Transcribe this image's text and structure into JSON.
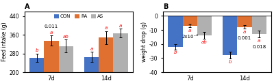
{
  "chart_data": [
    {
      "type": "bar",
      "title": "A",
      "y_label": "Feed intake (g)",
      "categories": [
        "7d",
        "14d"
      ],
      "series": [
        {
          "name": "CON",
          "color": "#4472C4",
          "values": [
            262,
            265
          ],
          "errors": [
            18,
            22
          ],
          "significance": [
            "b",
            "a"
          ]
        },
        {
          "name": "RA",
          "color": "#E07030",
          "values": [
            335,
            348
          ],
          "errors": [
            22,
            28
          ],
          "significance": [
            "a",
            "a"
          ]
        },
        {
          "name": "AS",
          "color": "#B0B0B0",
          "values": [
            312,
            368
          ],
          "errors": [
            28,
            18
          ],
          "significance": [
            "ab",
            "a"
          ]
        }
      ],
      "significance_color": "red",
      "annotations": [
        {
          "text": "0.011",
          "category": "7d",
          "series": "RA"
        }
      ],
      "ylim": [
        200,
        460
      ],
      "yticks": [
        200,
        280,
        360,
        440
      ],
      "legend": "upper center"
    },
    {
      "type": "bar",
      "title": "B",
      "y_label": "weight drop (g)",
      "categories": [
        "7d",
        "14d"
      ],
      "series": [
        {
          "name": "CON",
          "color": "#4472C4",
          "values": [
            -22,
            -28
          ],
          "errors": [
            2.0,
            2.5
          ],
          "significance": [
            "b",
            "b"
          ]
        },
        {
          "name": "RA",
          "color": "#E07030",
          "values": [
            -7,
            -8
          ],
          "errors": [
            1.2,
            1.2
          ],
          "significance": [
            "a",
            "a"
          ]
        },
        {
          "name": "AS",
          "color": "#B0B0B0",
          "values": [
            -14,
            -13
          ],
          "errors": [
            2.5,
            2.5
          ],
          "significance": [
            "ab",
            "a"
          ]
        }
      ],
      "significance_color": "red",
      "annotations": [
        {
          "text": "2x10⁻⁴",
          "category": "7d",
          "series": "RA"
        },
        {
          "text": "0.001",
          "category": "14d",
          "series": "RA"
        },
        {
          "text": "0.018",
          "category": "14d",
          "series": "AS"
        }
      ],
      "ylim": [
        -40,
        3
      ],
      "yticks": [
        0,
        -10,
        -20,
        -30,
        -40
      ]
    }
  ]
}
